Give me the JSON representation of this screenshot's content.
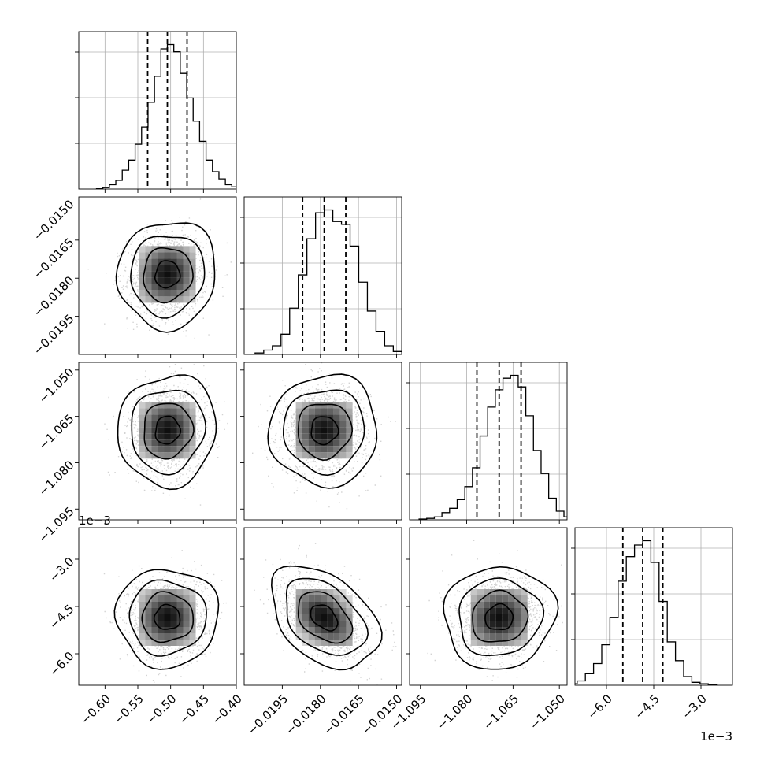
{
  "chart_data": {
    "type": "corner",
    "grid": true,
    "quantile_lines": [
      0.16,
      0.5,
      0.84
    ],
    "parameters": [
      {
        "index": 0,
        "range": [
          -0.64,
          -0.4
        ],
        "ticks": [
          -0.6,
          -0.55,
          -0.5,
          -0.45,
          -0.4
        ],
        "tick_labels": [
          "−0.60",
          "−0.55",
          "−0.50",
          "−0.45",
          "−0.40"
        ],
        "offset_label": "",
        "mean": -0.505,
        "sd": 0.03,
        "quantiles": [
          -0.535,
          -0.505,
          -0.475
        ],
        "hist_bins": [
          0.002,
          0.01,
          0.03,
          0.06,
          0.13,
          0.2,
          0.31,
          0.43,
          0.6,
          0.78,
          0.97,
          1.0,
          0.95,
          0.8,
          0.63,
          0.47,
          0.33,
          0.2,
          0.12,
          0.07,
          0.03,
          0.015
        ]
      },
      {
        "index": 1,
        "range": [
          -0.021,
          -0.0148
        ],
        "ticks": [
          -0.0195,
          -0.018,
          -0.0165,
          -0.015
        ],
        "tick_labels": [
          "−0.0195",
          "−0.0180",
          "−0.0165",
          "−0.0150"
        ],
        "offset_label": "",
        "mean": -0.01785,
        "sd": 0.00085,
        "quantiles": [
          -0.0187,
          -0.01785,
          -0.017
        ],
        "hist_bins": [
          0.002,
          0.01,
          0.03,
          0.06,
          0.14,
          0.32,
          0.55,
          0.8,
          0.98,
          1.0,
          0.92,
          0.9,
          0.75,
          0.5,
          0.3,
          0.16,
          0.06,
          0.02
        ]
      },
      {
        "index": 2,
        "range": [
          -1.0985,
          -1.0475
        ],
        "ticks": [
          -1.095,
          -1.08,
          -1.065,
          -1.05
        ],
        "tick_labels": [
          "−1.095",
          "−1.080",
          "−1.065",
          "−1.050"
        ],
        "offset_label": "",
        "mean": -1.0695,
        "sd": 0.0072,
        "quantiles": [
          -1.0767,
          -1.0695,
          -1.0624
        ],
        "hist_bins": [
          0.005,
          0.01,
          0.02,
          0.05,
          0.08,
          0.14,
          0.23,
          0.36,
          0.58,
          0.78,
          0.9,
          0.98,
          1.0,
          0.92,
          0.72,
          0.48,
          0.32,
          0.15,
          0.06,
          0.02,
          0.005
        ]
      },
      {
        "index": 3,
        "range": [
          -0.007,
          -0.002
        ],
        "ticks": [
          -0.006,
          -0.0045,
          -0.003
        ],
        "tick_labels": [
          "−6.0",
          "−4.5",
          "−3.0"
        ],
        "offset_label": "1e−3",
        "mean": -0.00485,
        "sd": 0.00065,
        "quantiles": [
          -0.00548,
          -0.00485,
          -0.00421
        ],
        "hist_bins": [
          0.01,
          0.03,
          0.08,
          0.15,
          0.28,
          0.47,
          0.72,
          0.89,
          0.97,
          1.0,
          0.85,
          0.58,
          0.3,
          0.17,
          0.06,
          0.02,
          0.01,
          0.005
        ]
      }
    ],
    "pairs": [
      {
        "row": 1,
        "col": 0,
        "correlation": 0.05
      },
      {
        "row": 2,
        "col": 0,
        "correlation": 0.05
      },
      {
        "row": 2,
        "col": 1,
        "correlation": 0.02
      },
      {
        "row": 3,
        "col": 0,
        "correlation": 0.0
      },
      {
        "row": 3,
        "col": 1,
        "correlation": -0.4
      },
      {
        "row": 3,
        "col": 2,
        "correlation": 0.05
      }
    ],
    "contour_levels_sigma": [
      0.5,
      1.0,
      1.5,
      2.0
    ]
  }
}
